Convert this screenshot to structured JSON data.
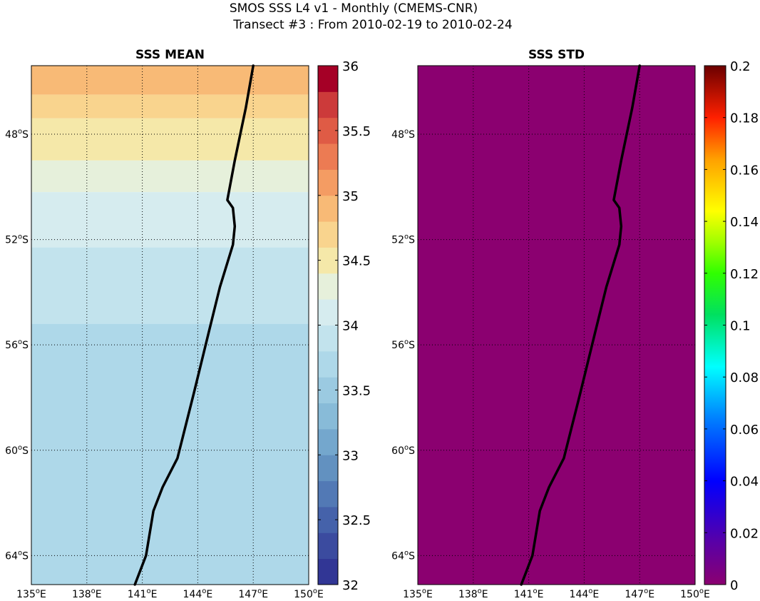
{
  "title_line1": "SMOS SSS L4 v1 - Monthly (CMEMS-CNR)",
  "title_line2": "Transect #3 : From 2010-02-19 to 2010-02-24",
  "colors": {
    "std_field": "#8B0070",
    "track": "#000000"
  },
  "chart_data": [
    {
      "type": "heatmap",
      "title": "SSS MEAN",
      "x_ticks": [
        {
          "value": 135,
          "label": "135°E"
        },
        {
          "value": 138,
          "label": "138°E"
        },
        {
          "value": 141,
          "label": "141°E"
        },
        {
          "value": 144,
          "label": "144°E"
        },
        {
          "value": 147,
          "label": "147°E"
        },
        {
          "value": 150,
          "label": "150°E"
        }
      ],
      "y_ticks": [
        {
          "value": -48,
          "label": "48°S"
        },
        {
          "value": -52,
          "label": "52°S"
        },
        {
          "value": -56,
          "label": "56°S"
        },
        {
          "value": -60,
          "label": "60°S"
        },
        {
          "value": -64,
          "label": "64°S"
        }
      ],
      "xlim": [
        135,
        150
      ],
      "ylim": [
        -65.1,
        -45.4
      ],
      "grid": true,
      "colorbar": {
        "min": 32,
        "max": 36,
        "levels": 20,
        "colormap": "RdYlBu_r",
        "ticks": [
          {
            "value": 32,
            "label": "32"
          },
          {
            "value": 32.5,
            "label": "32.5"
          },
          {
            "value": 33,
            "label": "33"
          },
          {
            "value": 33.5,
            "label": "33.5"
          },
          {
            "value": 34,
            "label": "34"
          },
          {
            "value": 34.5,
            "label": "34.5"
          },
          {
            "value": 35,
            "label": "35"
          },
          {
            "value": 35.5,
            "label": "35.5"
          },
          {
            "value": 36,
            "label": "36"
          }
        ]
      },
      "salinity_bands": [
        {
          "lat_top": -45.4,
          "lat_bottom": -46.5,
          "value": 34.9
        },
        {
          "lat_top": -46.5,
          "lat_bottom": -47.4,
          "value": 34.7
        },
        {
          "lat_top": -47.4,
          "lat_bottom": -49.0,
          "value": 34.5
        },
        {
          "lat_top": -49.0,
          "lat_bottom": -50.2,
          "value": 34.3
        },
        {
          "lat_top": -50.2,
          "lat_bottom": -52.3,
          "value": 34.1
        },
        {
          "lat_top": -52.3,
          "lat_bottom": -55.2,
          "value": 33.9
        },
        {
          "lat_top": -55.2,
          "lat_bottom": -65.1,
          "value": 33.7
        }
      ],
      "track": {
        "lon": [
          147.0,
          146.6,
          146.0,
          145.6,
          145.9,
          146.0,
          145.9,
          145.2,
          144.6,
          143.8,
          142.9,
          142.1,
          141.6,
          141.2,
          140.6
        ],
        "lat": [
          -45.4,
          -47.0,
          -49.0,
          -50.5,
          -50.8,
          -51.5,
          -52.2,
          -53.8,
          -55.5,
          -57.8,
          -60.3,
          -61.4,
          -62.3,
          -64.0,
          -65.1
        ]
      }
    },
    {
      "type": "heatmap",
      "title": "SSS STD",
      "x_ticks": [
        {
          "value": 135,
          "label": "135°E"
        },
        {
          "value": 138,
          "label": "138°E"
        },
        {
          "value": 141,
          "label": "141°E"
        },
        {
          "value": 144,
          "label": "144°E"
        },
        {
          "value": 147,
          "label": "147°E"
        },
        {
          "value": 150,
          "label": "150°E"
        }
      ],
      "y_ticks": [
        {
          "value": -48,
          "label": "48°S"
        },
        {
          "value": -52,
          "label": "52°S"
        },
        {
          "value": -56,
          "label": "56°S"
        },
        {
          "value": -60,
          "label": "60°S"
        },
        {
          "value": -64,
          "label": "64°S"
        }
      ],
      "xlim": [
        135,
        150
      ],
      "ylim": [
        -65.1,
        -45.4
      ],
      "grid": true,
      "field_value": 0,
      "colorbar": {
        "min": 0,
        "max": 0.2,
        "colormap": "spectral",
        "ticks": [
          {
            "value": 0,
            "label": "0"
          },
          {
            "value": 0.02,
            "label": "0.02"
          },
          {
            "value": 0.04,
            "label": "0.04"
          },
          {
            "value": 0.06,
            "label": "0.06"
          },
          {
            "value": 0.08,
            "label": "0.08"
          },
          {
            "value": 0.1,
            "label": "0.1"
          },
          {
            "value": 0.12,
            "label": "0.12"
          },
          {
            "value": 0.14,
            "label": "0.14"
          },
          {
            "value": 0.16,
            "label": "0.16"
          },
          {
            "value": 0.18,
            "label": "0.18"
          },
          {
            "value": 0.2,
            "label": "0.2"
          }
        ]
      },
      "track": {
        "lon": [
          147.0,
          146.6,
          146.0,
          145.6,
          145.9,
          146.0,
          145.9,
          145.2,
          144.6,
          143.8,
          142.9,
          142.1,
          141.6,
          141.2,
          140.6
        ],
        "lat": [
          -45.4,
          -47.0,
          -49.0,
          -50.5,
          -50.8,
          -51.5,
          -52.2,
          -53.8,
          -55.5,
          -57.8,
          -60.3,
          -61.4,
          -62.3,
          -64.0,
          -65.1
        ]
      }
    }
  ]
}
